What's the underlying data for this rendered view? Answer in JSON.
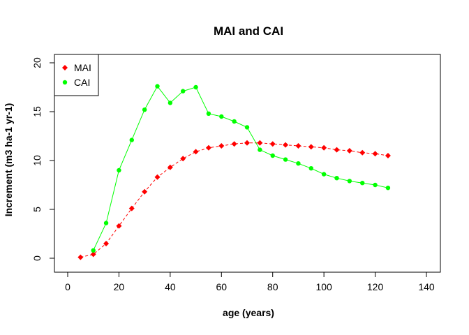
{
  "chart_data": {
    "type": "scatter",
    "title": "MAI and CAI",
    "xlabel": "age (years)",
    "ylabel": "Increment (m3 ha-1 yr-1)",
    "xlim": [
      0,
      140
    ],
    "ylim": [
      0,
      20
    ],
    "xticks": [
      "0",
      "20",
      "40",
      "60",
      "80",
      "100",
      "120",
      "140"
    ],
    "yticks": [
      "0",
      "5",
      "10",
      "15",
      "20"
    ],
    "grid": false,
    "legend": "top-left",
    "series": [
      {
        "name": "MAI",
        "color": "#ff0000",
        "marker": "diamond",
        "line": "dashed",
        "x": [
          5,
          10,
          15,
          20,
          25,
          30,
          35,
          40,
          45,
          50,
          55,
          60,
          65,
          70,
          75,
          80,
          85,
          90,
          95,
          100,
          105,
          110,
          115,
          120,
          125
        ],
        "y": [
          0.1,
          0.4,
          1.5,
          3.3,
          5.1,
          6.8,
          8.3,
          9.3,
          10.2,
          10.9,
          11.3,
          11.5,
          11.7,
          11.8,
          11.8,
          11.7,
          11.6,
          11.5,
          11.4,
          11.3,
          11.1,
          11.0,
          10.8,
          10.7,
          10.5
        ]
      },
      {
        "name": "CAI",
        "color": "#00ff00",
        "marker": "circle",
        "line": "solid",
        "x": [
          10,
          15,
          20,
          25,
          30,
          35,
          40,
          45,
          50,
          55,
          60,
          65,
          70,
          75,
          80,
          85,
          90,
          95,
          100,
          105,
          110,
          115,
          120,
          125
        ],
        "y": [
          0.8,
          3.6,
          9.0,
          12.1,
          15.2,
          17.6,
          15.9,
          17.1,
          17.5,
          14.8,
          14.5,
          14.0,
          13.4,
          11.1,
          10.5,
          10.1,
          9.7,
          9.2,
          8.6,
          8.2,
          7.9,
          7.7,
          7.5,
          7.2
        ]
      }
    ]
  }
}
